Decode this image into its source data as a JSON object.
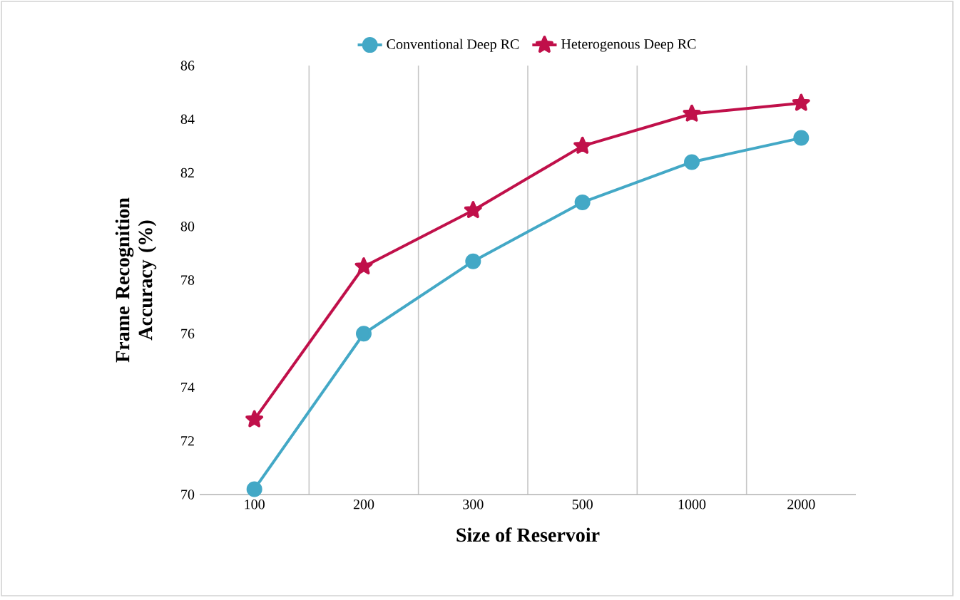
{
  "chart_data": {
    "type": "line",
    "xlabel": "Size of Reservoir",
    "ylabel": "Frame Recognition Accuracy (%)",
    "categories": [
      "100",
      "200",
      "300",
      "500",
      "1000",
      "2000"
    ],
    "series": [
      {
        "name": "Conventional Deep RC",
        "color": "#43a8c6",
        "marker": "circle",
        "values": [
          70.2,
          76.0,
          78.7,
          80.9,
          82.4,
          83.3
        ]
      },
      {
        "name": "Heterogenous Deep RC",
        "color": "#c0104a",
        "marker": "star",
        "values": [
          72.8,
          78.5,
          80.6,
          83.0,
          84.2,
          84.6
        ]
      }
    ],
    "ylim": [
      70,
      86
    ],
    "yticks": [
      70,
      72,
      74,
      76,
      78,
      80,
      82,
      84,
      86
    ],
    "grid": "x",
    "legend": "top"
  }
}
